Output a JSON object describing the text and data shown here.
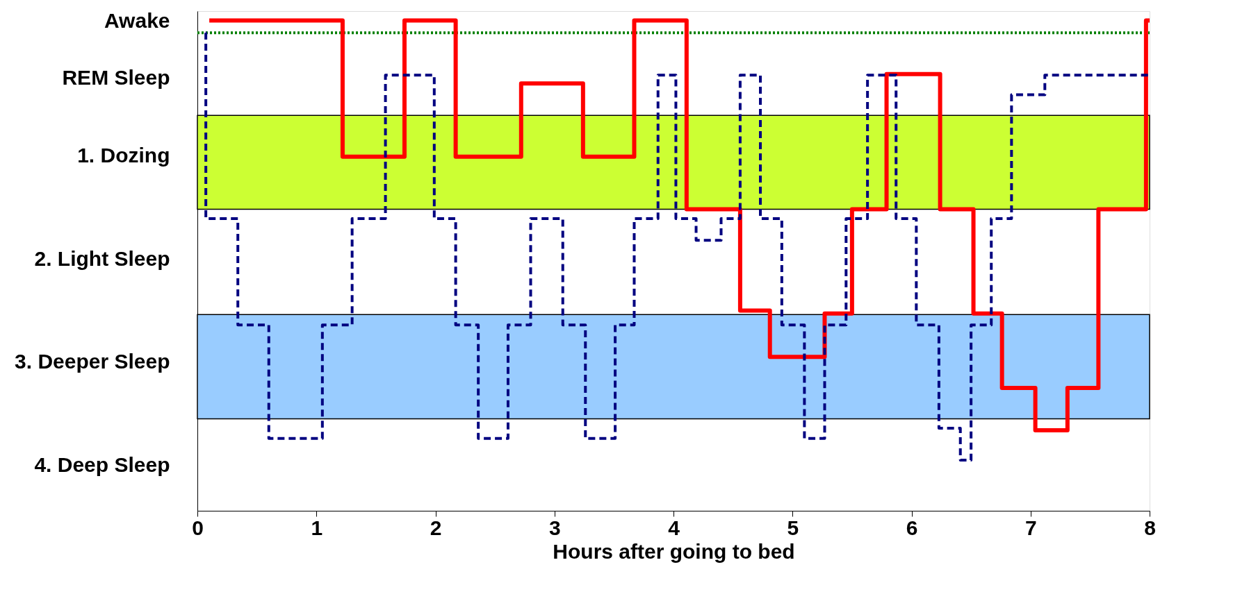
{
  "chart_data": {
    "type": "step",
    "xlabel": "Hours after going to bed",
    "xlim": [
      0,
      8
    ],
    "xticks": [
      0,
      1,
      2,
      3,
      4,
      5,
      6,
      7,
      8
    ],
    "ylim": [
      4.44,
      -0.4
    ],
    "yticks": [
      {
        "value": -0.3,
        "label": "Awake"
      },
      {
        "value": 0.25,
        "label": "REM Sleep"
      },
      {
        "value": 1,
        "label": "1. Dozing"
      },
      {
        "value": 2,
        "label": "2. Light Sleep"
      },
      {
        "value": 3,
        "label": "3. Deeper Sleep"
      },
      {
        "value": 4,
        "label": "4. Deep Sleep"
      }
    ],
    "grid": false,
    "bands": [
      {
        "axis": "y",
        "from": 0.61,
        "to": 1.52,
        "color": "#ccff33"
      },
      {
        "axis": "y",
        "from": 2.54,
        "to": 3.55,
        "color": "#99ccff"
      }
    ],
    "ref_lines": [
      {
        "axis": "y",
        "value": -0.19,
        "color": "#008000",
        "line_style": "dotted"
      }
    ],
    "series": [
      {
        "color": "#ff0000",
        "line_style": "solid",
        "x": [
          0.1,
          1.22,
          1.74,
          2.17,
          2.72,
          3.24,
          3.67,
          4.11,
          4.56,
          4.81,
          5.27,
          5.5,
          5.79,
          6.24,
          6.52,
          6.76,
          7.04,
          7.31,
          7.57,
          7.97,
          8.0
        ],
        "values": [
          -0.31,
          1.01,
          -0.31,
          1.01,
          0.3,
          1.01,
          -0.31,
          1.52,
          2.5,
          2.95,
          2.53,
          1.52,
          0.21,
          1.52,
          2.53,
          3.25,
          3.66,
          3.25,
          1.52,
          -0.31,
          -0.31
        ]
      },
      {
        "color": "#000080",
        "line_style": "dashed",
        "x": [
          0.07,
          0.071,
          0.34,
          0.6,
          1.05,
          1.3,
          1.58,
          1.99,
          2.17,
          2.36,
          2.61,
          2.8,
          3.07,
          3.26,
          3.51,
          3.67,
          3.87,
          4.02,
          4.19,
          4.4,
          4.56,
          4.73,
          4.91,
          5.1,
          5.27,
          5.45,
          5.63,
          5.87,
          6.04,
          6.23,
          6.41,
          6.5,
          6.67,
          6.84,
          7.12,
          8.0
        ],
        "values": [
          -0.19,
          1.61,
          2.64,
          3.74,
          2.64,
          1.61,
          0.22,
          1.61,
          2.64,
          3.74,
          2.64,
          1.61,
          2.64,
          3.74,
          2.64,
          1.61,
          0.22,
          1.61,
          1.82,
          1.61,
          0.22,
          1.61,
          2.64,
          3.74,
          2.64,
          1.61,
          0.22,
          1.61,
          2.64,
          3.64,
          3.95,
          2.64,
          1.61,
          0.41,
          0.22,
          0.22
        ]
      }
    ]
  }
}
